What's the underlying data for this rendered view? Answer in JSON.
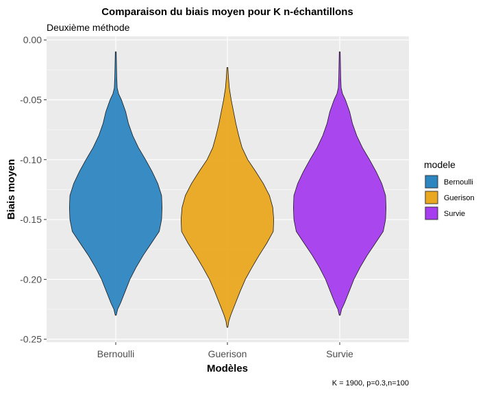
{
  "chart_data": {
    "type": "violin",
    "title": "Comparaison du biais moyen pour K n-échantillons",
    "subtitle": "Deuxième méthode",
    "xlabel": "Modèles",
    "ylabel": "Biais moyen",
    "caption": "K = 1900, p=0.3,n=100",
    "ylim": [
      -0.25,
      0.0
    ],
    "yticks": [
      "0.00",
      "-0.05",
      "-0.10",
      "-0.15",
      "-0.20",
      "-0.25"
    ],
    "ytick_values": [
      0.0,
      -0.05,
      -0.1,
      -0.15,
      -0.2,
      -0.25
    ],
    "categories": [
      "Bernoulli",
      "Guerison",
      "Survie"
    ],
    "legend": {
      "title": "modele",
      "position": "right",
      "entries": [
        "Bernoulli",
        "Guerison",
        "Survie"
      ]
    },
    "grid": true,
    "series": [
      {
        "category": "Bernoulli",
        "color": "#2E86C1",
        "min": -0.23,
        "max": -0.01,
        "density": [
          [
            -0.23,
            0.01
          ],
          [
            -0.225,
            0.04
          ],
          [
            -0.22,
            0.1
          ],
          [
            -0.21,
            0.2
          ],
          [
            -0.2,
            0.3
          ],
          [
            -0.19,
            0.43
          ],
          [
            -0.18,
            0.58
          ],
          [
            -0.17,
            0.75
          ],
          [
            -0.16,
            0.92
          ],
          [
            -0.15,
            0.97
          ],
          [
            -0.14,
            0.98
          ],
          [
            -0.13,
            0.97
          ],
          [
            -0.12,
            0.89
          ],
          [
            -0.11,
            0.77
          ],
          [
            -0.1,
            0.63
          ],
          [
            -0.09,
            0.48
          ],
          [
            -0.08,
            0.36
          ],
          [
            -0.07,
            0.27
          ],
          [
            -0.06,
            0.21
          ],
          [
            -0.05,
            0.12
          ],
          [
            -0.045,
            0.06
          ],
          [
            -0.04,
            0.03
          ],
          [
            -0.03,
            0.02
          ],
          [
            -0.02,
            0.015
          ],
          [
            -0.01,
            0.01
          ]
        ]
      },
      {
        "category": "Guerison",
        "color": "#E9A81F",
        "min": -0.24,
        "max": -0.023,
        "density": [
          [
            -0.24,
            0.01
          ],
          [
            -0.235,
            0.03
          ],
          [
            -0.23,
            0.07
          ],
          [
            -0.22,
            0.17
          ],
          [
            -0.21,
            0.27
          ],
          [
            -0.2,
            0.38
          ],
          [
            -0.19,
            0.52
          ],
          [
            -0.18,
            0.67
          ],
          [
            -0.17,
            0.83
          ],
          [
            -0.16,
            0.97
          ],
          [
            -0.15,
            0.98
          ],
          [
            -0.14,
            0.96
          ],
          [
            -0.13,
            0.89
          ],
          [
            -0.12,
            0.76
          ],
          [
            -0.11,
            0.6
          ],
          [
            -0.1,
            0.43
          ],
          [
            -0.09,
            0.31
          ],
          [
            -0.08,
            0.24
          ],
          [
            -0.07,
            0.18
          ],
          [
            -0.06,
            0.13
          ],
          [
            -0.05,
            0.08
          ],
          [
            -0.04,
            0.04
          ],
          [
            -0.03,
            0.02
          ],
          [
            -0.023,
            0.01
          ]
        ]
      },
      {
        "category": "Survie",
        "color": "#A63DEE",
        "min": -0.23,
        "max": -0.01,
        "density": [
          [
            -0.23,
            0.01
          ],
          [
            -0.225,
            0.04
          ],
          [
            -0.22,
            0.1
          ],
          [
            -0.21,
            0.2
          ],
          [
            -0.2,
            0.3
          ],
          [
            -0.19,
            0.43
          ],
          [
            -0.18,
            0.58
          ],
          [
            -0.17,
            0.75
          ],
          [
            -0.16,
            0.92
          ],
          [
            -0.15,
            0.97
          ],
          [
            -0.14,
            0.98
          ],
          [
            -0.13,
            0.97
          ],
          [
            -0.12,
            0.89
          ],
          [
            -0.11,
            0.77
          ],
          [
            -0.1,
            0.63
          ],
          [
            -0.09,
            0.48
          ],
          [
            -0.08,
            0.36
          ],
          [
            -0.07,
            0.27
          ],
          [
            -0.06,
            0.21
          ],
          [
            -0.05,
            0.12
          ],
          [
            -0.045,
            0.06
          ],
          [
            -0.04,
            0.03
          ],
          [
            -0.03,
            0.02
          ],
          [
            -0.02,
            0.015
          ],
          [
            -0.01,
            0.01
          ]
        ]
      }
    ]
  }
}
